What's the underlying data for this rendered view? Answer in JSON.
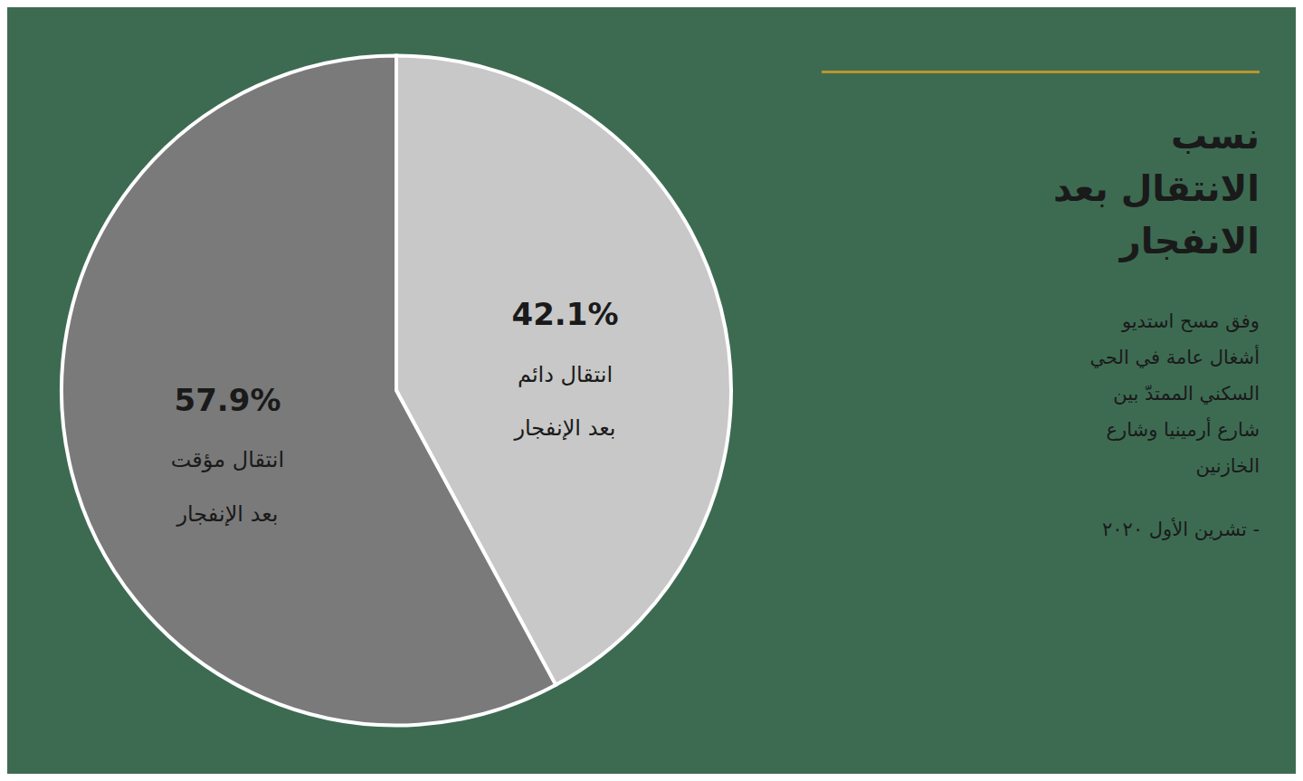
{
  "chart_data": {
    "type": "pie",
    "title": "نسب\nالانتقال بعد\nالانفجار",
    "subtitle": "وفق مسح استديو\nأشغال عامة في الحي\nالسكني الممتدّ بين\nشارع أرمينيا وشارع\nالخازنين",
    "annotations": [
      "- تشرين الأول ٢٠٢٠"
    ],
    "categories": [
      "انتقال دائم\nبعد الإنفجار",
      "انتقال مؤقت\nبعد الإنفجار"
    ],
    "values": [
      42.1,
      57.9
    ],
    "value_labels": [
      "42.1%",
      "57.9%"
    ],
    "colors": [
      "#c8c8c8",
      "#7a7a7a"
    ],
    "data_labels": true
  }
}
